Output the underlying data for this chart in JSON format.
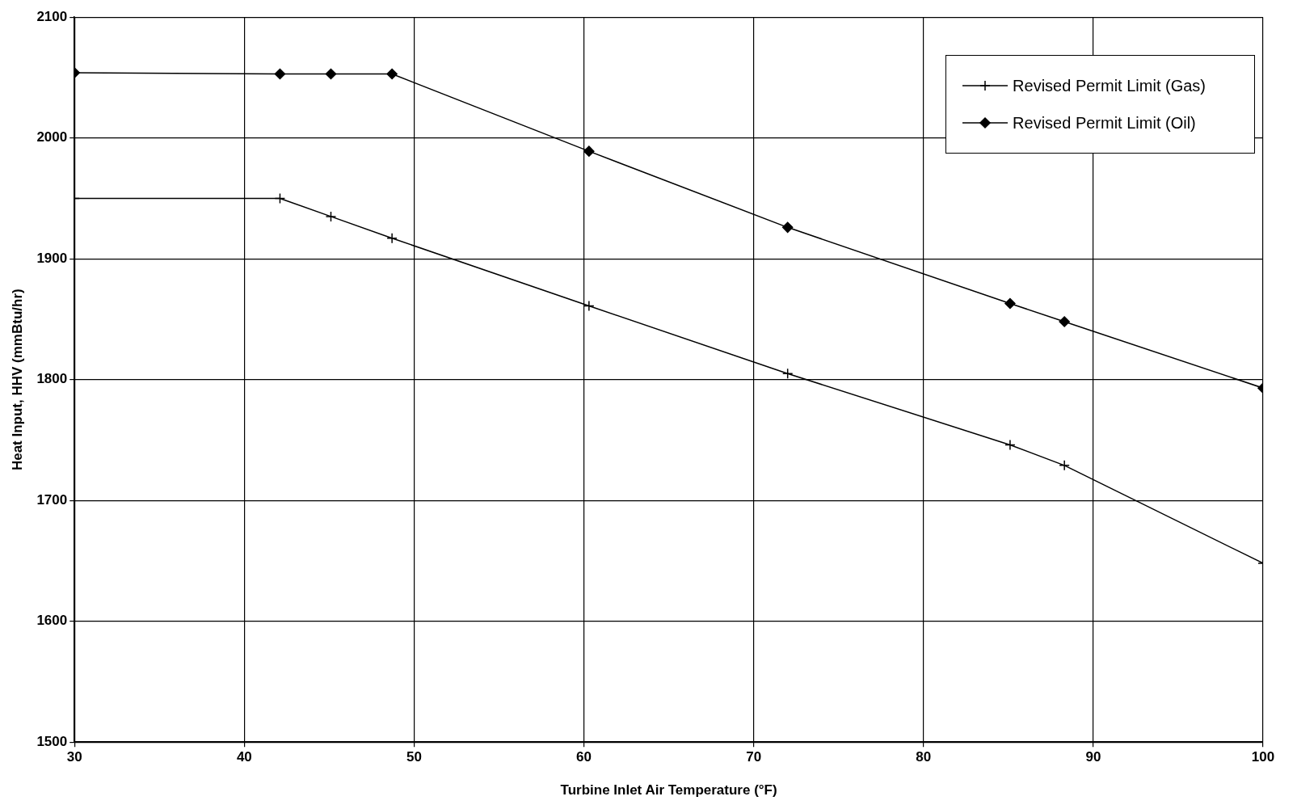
{
  "chart_data": {
    "type": "line",
    "xlabel": "Turbine Inlet Air Temperature (°F)",
    "ylabel": "Heat Input, HHV (mmBtu/hr)",
    "xlim": [
      30,
      100
    ],
    "xticks": [
      30,
      40,
      50,
      60,
      70,
      80,
      90,
      100
    ],
    "ylim": [
      1500,
      2100
    ],
    "yticks": [
      1500,
      1600,
      1700,
      1800,
      1900,
      2000,
      2100
    ],
    "grid": true,
    "legend": "top right",
    "line_style": "solid",
    "series": [
      {
        "name": "Revised Permit Limit (Gas)",
        "color": "#000000",
        "marker": "cross",
        "x": [
          30,
          42.1,
          45.1,
          48.7,
          60.3,
          72,
          85.1,
          88.3,
          100
        ],
        "values": [
          1950,
          1950,
          1935,
          1917,
          1861,
          1805,
          1746,
          1729,
          1648
        ]
      },
      {
        "name": "Revised Permit Limit (Oil)",
        "color": "#000000",
        "marker": "diamond",
        "x": [
          30,
          42.1,
          45.1,
          48.7,
          60.3,
          72,
          85.1,
          88.3,
          100
        ],
        "values": [
          2054,
          2053,
          2053,
          2053,
          1989,
          1926,
          1863,
          1848,
          1793
        ]
      }
    ]
  }
}
